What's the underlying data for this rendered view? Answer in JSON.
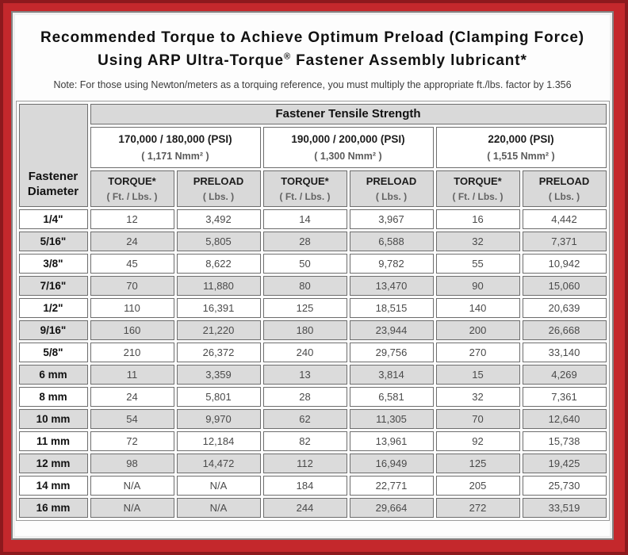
{
  "title": {
    "line1": "Recommended Torque to Achieve Optimum Preload (Clamping Force)",
    "line2_pre": "Using ARP Ultra-Torque",
    "line2_reg": "®",
    "line2_post": " Fastener Assembly lubricant*"
  },
  "note": "Note: For those using Newton/meters as a torquing reference, you must multiply the appropriate ft./lbs. factor by 1.356",
  "colors": {
    "frame_red": "#c4282c",
    "frame_dark_red": "#8d191d",
    "header_gray": "#d9d9d9",
    "stripe_gray": "#dbdbdb",
    "cell_border": "#6e6e6e"
  },
  "table": {
    "corner_line1": "Fastener",
    "corner_line2": "Diameter",
    "tensile_header": "Fastener Tensile Strength",
    "groups": [
      {
        "psi": "170,000 / 180,000 (PSI)",
        "nmm": "( 1,171 Nmm² )"
      },
      {
        "psi": "190,000 / 200,000 (PSI)",
        "nmm": "( 1,300 Nmm² )"
      },
      {
        "psi": "220,000 (PSI)",
        "nmm": "( 1,515 Nmm² )"
      }
    ],
    "torque_label": "TORQUE*",
    "torque_unit": "( Ft. / Lbs. )",
    "preload_label": "PRELOAD",
    "preload_unit": "( Lbs. )",
    "rows": [
      {
        "d": "1/4\"",
        "v": [
          "12",
          "3,492",
          "14",
          "3,967",
          "16",
          "4,442"
        ]
      },
      {
        "d": "5/16\"",
        "v": [
          "24",
          "5,805",
          "28",
          "6,588",
          "32",
          "7,371"
        ]
      },
      {
        "d": "3/8\"",
        "v": [
          "45",
          "8,622",
          "50",
          "9,782",
          "55",
          "10,942"
        ]
      },
      {
        "d": "7/16\"",
        "v": [
          "70",
          "11,880",
          "80",
          "13,470",
          "90",
          "15,060"
        ]
      },
      {
        "d": "1/2\"",
        "v": [
          "110",
          "16,391",
          "125",
          "18,515",
          "140",
          "20,639"
        ]
      },
      {
        "d": "9/16\"",
        "v": [
          "160",
          "21,220",
          "180",
          "23,944",
          "200",
          "26,668"
        ]
      },
      {
        "d": "5/8\"",
        "v": [
          "210",
          "26,372",
          "240",
          "29,756",
          "270",
          "33,140"
        ]
      },
      {
        "d": "6 mm",
        "v": [
          "11",
          "3,359",
          "13",
          "3,814",
          "15",
          "4,269"
        ]
      },
      {
        "d": "8 mm",
        "v": [
          "24",
          "5,801",
          "28",
          "6,581",
          "32",
          "7,361"
        ]
      },
      {
        "d": "10 mm",
        "v": [
          "54",
          "9,970",
          "62",
          "11,305",
          "70",
          "12,640"
        ]
      },
      {
        "d": "11 mm",
        "v": [
          "72",
          "12,184",
          "82",
          "13,961",
          "92",
          "15,738"
        ]
      },
      {
        "d": "12 mm",
        "v": [
          "98",
          "14,472",
          "112",
          "16,949",
          "125",
          "19,425"
        ]
      },
      {
        "d": "14 mm",
        "v": [
          "N/A",
          "N/A",
          "184",
          "22,771",
          "205",
          "25,730"
        ]
      },
      {
        "d": "16 mm",
        "v": [
          "N/A",
          "N/A",
          "244",
          "29,664",
          "272",
          "33,519"
        ]
      }
    ]
  }
}
